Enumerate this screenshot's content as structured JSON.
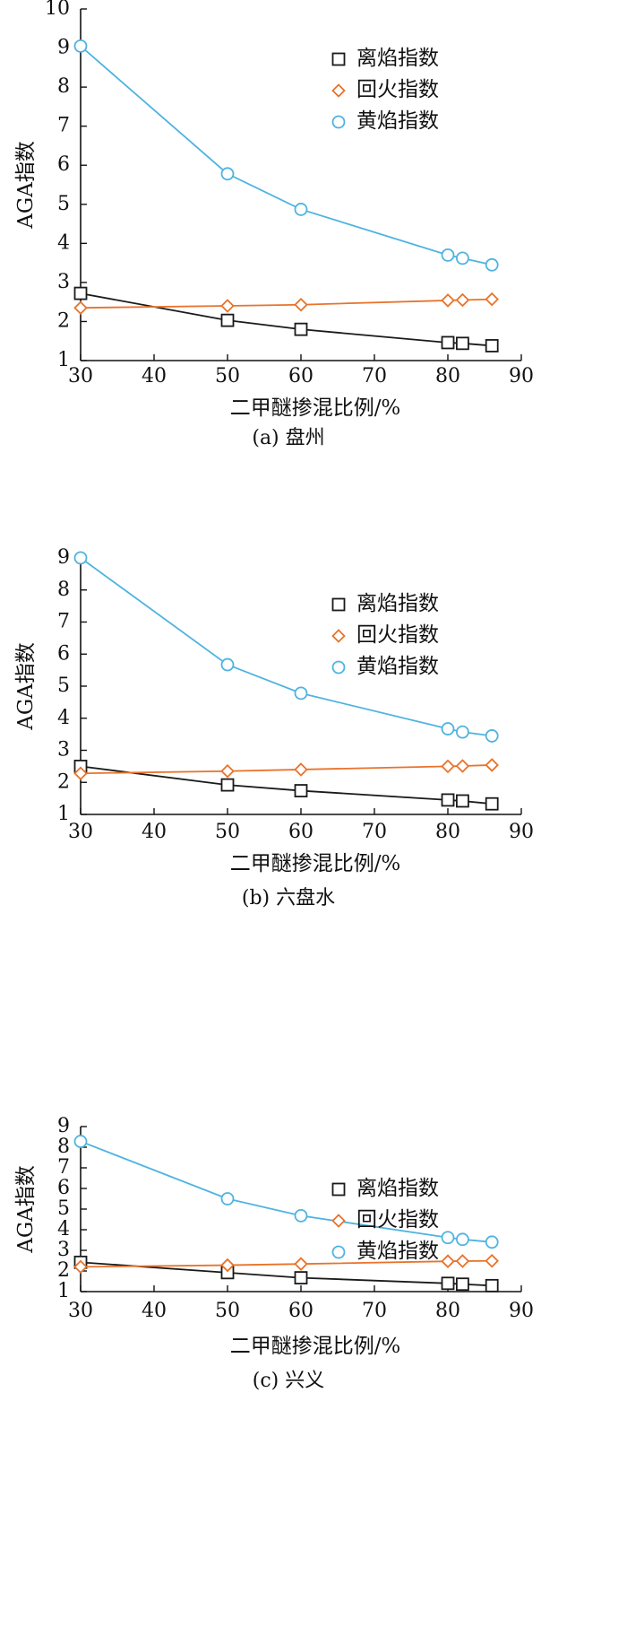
{
  "chart_data": [
    {
      "type": "line",
      "caption": "(a) 盘州",
      "xlabel": "二甲醚掺混比例/%",
      "ylabel": "AGA指数",
      "xlim": [
        30,
        90
      ],
      "ylim": [
        1,
        10
      ],
      "xticks": [
        30,
        40,
        50,
        60,
        70,
        80,
        90
      ],
      "yticks": [
        1,
        2,
        3,
        4,
        5,
        6,
        7,
        8,
        9,
        10
      ],
      "legend_position": "top-right",
      "x": [
        30,
        50,
        60,
        80,
        82,
        86
      ],
      "series": [
        {
          "name": "离焰指数",
          "marker": "square",
          "color": "#1a1a1a",
          "values": [
            2.72,
            2.03,
            1.8,
            1.46,
            1.44,
            1.38
          ]
        },
        {
          "name": "回火指数",
          "marker": "diamond",
          "color": "#e8732a",
          "values": [
            2.35,
            2.4,
            2.43,
            2.54,
            2.55,
            2.57
          ]
        },
        {
          "name": "黄焰指数",
          "marker": "circle",
          "color": "#4fb3e0",
          "values": [
            9.05,
            5.78,
            4.87,
            3.7,
            3.62,
            3.45
          ]
        }
      ]
    },
    {
      "type": "line",
      "caption": "(b) 六盘水",
      "xlabel": "二甲醚掺混比例/%",
      "ylabel": "AGA指数",
      "xlim": [
        30,
        90
      ],
      "ylim": [
        1,
        9
      ],
      "xticks": [
        30,
        40,
        50,
        60,
        70,
        80,
        90
      ],
      "yticks": [
        1,
        2,
        3,
        4,
        5,
        6,
        7,
        8,
        9
      ],
      "legend_position": "top-right",
      "x": [
        30,
        50,
        60,
        80,
        82,
        86
      ],
      "series": [
        {
          "name": "离焰指数",
          "marker": "square",
          "color": "#1a1a1a",
          "values": [
            2.5,
            1.92,
            1.74,
            1.45,
            1.42,
            1.33
          ]
        },
        {
          "name": "回火指数",
          "marker": "diamond",
          "color": "#e8732a",
          "values": [
            2.28,
            2.35,
            2.4,
            2.5,
            2.51,
            2.54
          ]
        },
        {
          "name": "黄焰指数",
          "marker": "circle",
          "color": "#4fb3e0",
          "values": [
            9.0,
            5.67,
            4.78,
            3.67,
            3.57,
            3.45
          ]
        }
      ]
    },
    {
      "type": "line",
      "caption": "(c) 兴义",
      "xlabel": "二甲醚掺混比例/%",
      "ylabel": "AGA指数",
      "xlim": [
        30,
        90
      ],
      "ylim": [
        1,
        9
      ],
      "xticks": [
        30,
        40,
        50,
        60,
        70,
        80,
        90
      ],
      "yticks": [
        1,
        2,
        3,
        4,
        5,
        6,
        7,
        8,
        9
      ],
      "legend_position": "top-right",
      "x": [
        30,
        50,
        60,
        80,
        82,
        86
      ],
      "series": [
        {
          "name": "离焰指数",
          "marker": "square",
          "color": "#1a1a1a",
          "values": [
            2.42,
            1.92,
            1.67,
            1.4,
            1.36,
            1.29
          ]
        },
        {
          "name": "回火指数",
          "marker": "diamond",
          "color": "#e8732a",
          "values": [
            2.2,
            2.28,
            2.34,
            2.47,
            2.48,
            2.49
          ]
        },
        {
          "name": "黄焰指数",
          "marker": "circle",
          "color": "#4fb3e0",
          "values": [
            8.28,
            5.5,
            4.68,
            3.62,
            3.53,
            3.4
          ]
        }
      ]
    }
  ]
}
